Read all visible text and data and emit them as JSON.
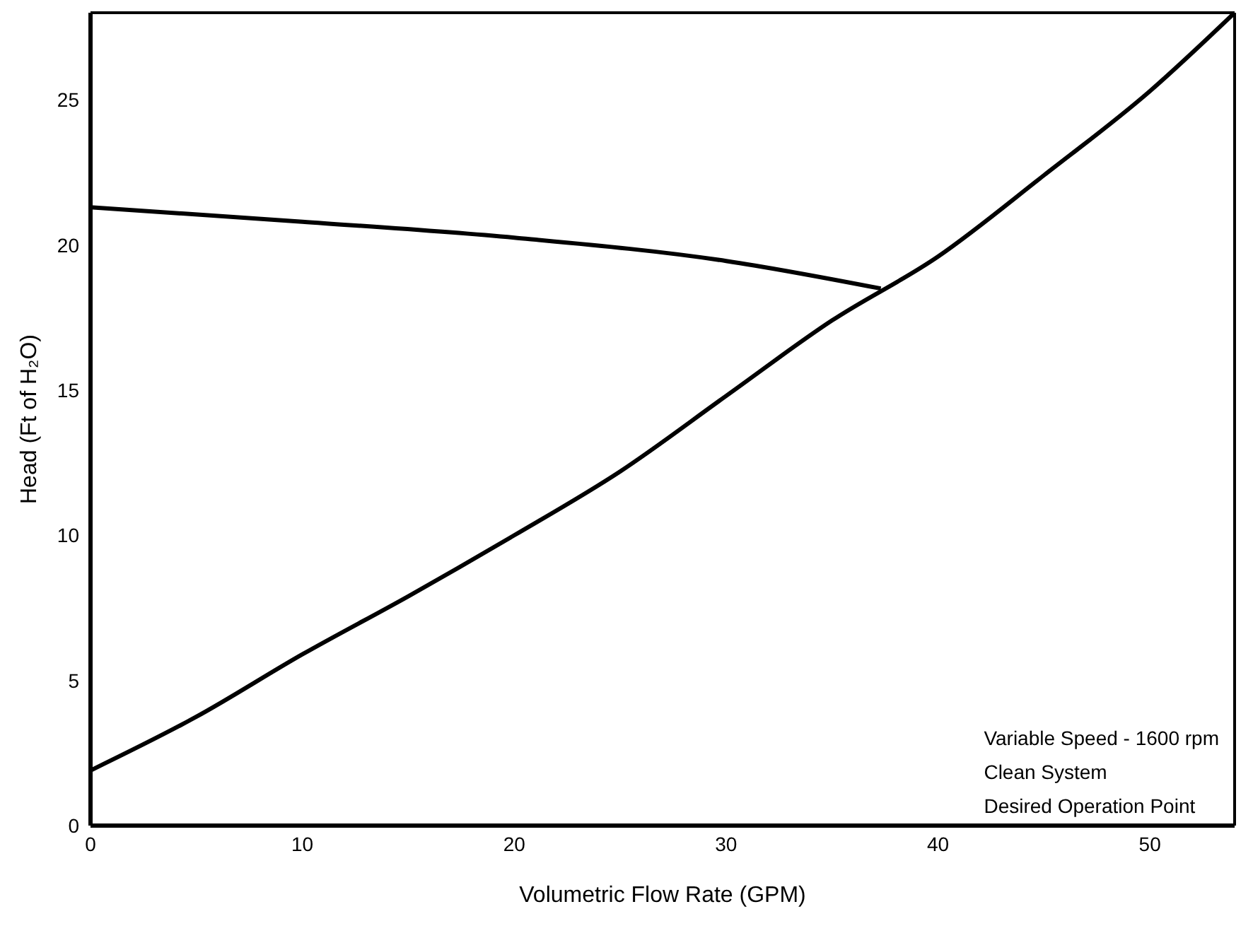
{
  "chart_data": {
    "type": "line",
    "xlabel": "Volumetric Flow Rate (GPM)",
    "ylabel": "Head (Ft of H₂O)",
    "xlim": [
      0,
      54
    ],
    "ylim": [
      0,
      28
    ],
    "xticks": [
      0,
      10,
      20,
      30,
      40,
      50
    ],
    "yticks": [
      0,
      5,
      10,
      15,
      20,
      25
    ],
    "marker": "none",
    "line_style": "solid",
    "series": [
      {
        "color": "#000000",
        "x": [
          0,
          10,
          20,
          30,
          37.3
        ],
        "values": [
          21.3,
          20.8,
          20.25,
          19.45,
          18.5
        ]
      },
      {
        "color": "#000000",
        "x": [
          0,
          5,
          10,
          15,
          20,
          25,
          30,
          35,
          40,
          45,
          50,
          54
        ],
        "values": [
          1.9,
          3.75,
          5.9,
          7.9,
          10.0,
          12.2,
          14.8,
          17.4,
          19.6,
          22.4,
          25.3,
          28
        ]
      }
    ],
    "annotations": [
      "Variable Speed - 1600 rpm",
      "Clean System",
      "Desired Operation Point"
    ]
  }
}
